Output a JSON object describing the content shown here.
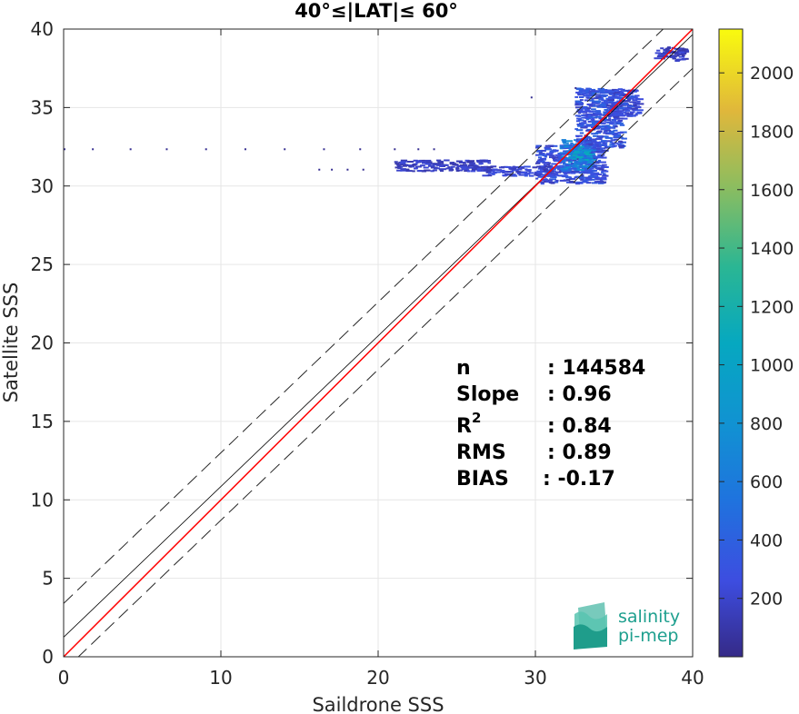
{
  "chart_data": {
    "type": "scatter",
    "title": "40°≤|LAT|≤ 60°",
    "xlabel": "Saildrone SSS",
    "ylabel": "Satellite SSS",
    "xlim": [
      0,
      40
    ],
    "ylim": [
      0,
      40
    ],
    "xticks": [
      0,
      10,
      20,
      30,
      40
    ],
    "yticks": [
      0,
      5,
      10,
      15,
      20,
      25,
      30,
      35,
      40
    ],
    "grid": true,
    "colorbar": {
      "range": [
        0,
        2150
      ],
      "ticks": [
        200,
        400,
        600,
        800,
        1000,
        1200,
        1400,
        1600,
        1800,
        2000
      ]
    },
    "lines": {
      "identity": {
        "slope": 1,
        "intercept": 0,
        "color": "#ff0000"
      },
      "fit": {
        "slope": 0.96,
        "intercept": 1.25,
        "color": "#000000"
      },
      "bound_upper": {
        "slope": 0.96,
        "intercept": 3.4
      },
      "bound_lower": {
        "slope": 0.96,
        "intercept": -0.9
      }
    },
    "stats": [
      {
        "label": "n",
        "value": ": 144584"
      },
      {
        "label": "Slope",
        "value": ": 0.96"
      },
      {
        "label": "R",
        "sup": "2",
        "value": ": 0.84"
      },
      {
        "label": "RMS",
        "value": ": 0.89"
      },
      {
        "label": "BIAS",
        "value": ": -0.17"
      }
    ],
    "density_clusters": [
      {
        "x0": 30.0,
        "x1": 34.3,
        "y0": 30.2,
        "y1": 32.7,
        "density": 300
      },
      {
        "x0": 31.5,
        "x1": 33.5,
        "y0": 31.0,
        "y1": 33.0,
        "density": 650
      },
      {
        "x0": 32.3,
        "x1": 33.3,
        "y0": 31.5,
        "y1": 32.6,
        "density": 950
      },
      {
        "x0": 26.5,
        "x1": 31.0,
        "y0": 30.7,
        "y1": 31.3,
        "density": 250
      },
      {
        "x0": 21.0,
        "x1": 27.0,
        "y0": 31.0,
        "y1": 31.7,
        "density": 200
      },
      {
        "x0": 32.5,
        "x1": 35.5,
        "y0": 32.5,
        "y1": 36.3,
        "density": 350
      },
      {
        "x0": 34.5,
        "x1": 36.5,
        "y0": 34.5,
        "y1": 36.2,
        "density": 300
      },
      {
        "x0": 37.5,
        "x1": 39.5,
        "y0": 38.0,
        "y1": 38.9,
        "density": 200
      }
    ],
    "sparse_points": [
      {
        "x": 0.0,
        "y": 32.4
      },
      {
        "x": 1.8,
        "y": 32.4
      },
      {
        "x": 4.2,
        "y": 32.4
      },
      {
        "x": 6.5,
        "y": 32.4
      },
      {
        "x": 9.0,
        "y": 32.4
      },
      {
        "x": 11.5,
        "y": 32.4
      },
      {
        "x": 14.0,
        "y": 32.4
      },
      {
        "x": 16.5,
        "y": 32.4
      },
      {
        "x": 18.8,
        "y": 32.4
      },
      {
        "x": 21.0,
        "y": 32.4
      },
      {
        "x": 22.5,
        "y": 32.4
      },
      {
        "x": 23.5,
        "y": 32.4
      },
      {
        "x": 16.2,
        "y": 31.1
      },
      {
        "x": 17.0,
        "y": 31.1
      },
      {
        "x": 18.0,
        "y": 31.1
      },
      {
        "x": 19.0,
        "y": 31.1
      },
      {
        "x": 29.7,
        "y": 35.7
      },
      {
        "x": 32.5,
        "y": 36.3
      }
    ]
  },
  "logo": {
    "line1": "salinity",
    "line2": "pi-mep"
  }
}
